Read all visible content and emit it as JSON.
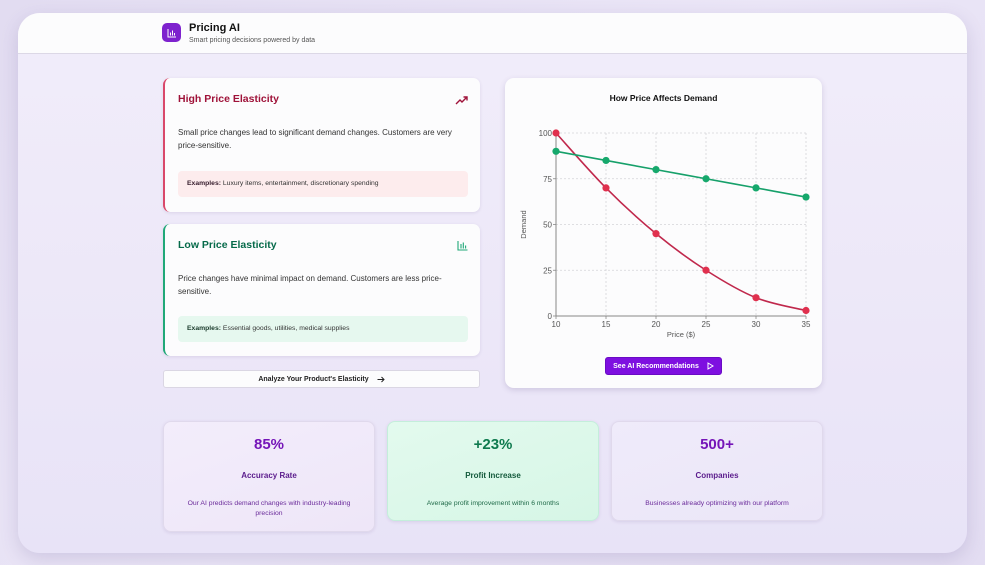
{
  "header": {
    "app_title": "Pricing AI",
    "app_subtitle": "Smart pricing decisions powered by data",
    "logo_icon": "bar-chart-icon"
  },
  "elasticity_cards": [
    {
      "title": "High Price Elasticity",
      "icon": "trending-up-icon",
      "description": "Small price changes lead to significant demand changes. Customers are very price-sensitive.",
      "examples_label": "Examples:",
      "examples": "Luxury items, entertainment, discretionary spending",
      "accent": "#d9486a"
    },
    {
      "title": "Low Price Elasticity",
      "icon": "bar-chart-icon",
      "description": "Price changes have minimal impact on demand. Customers are less price-sensitive.",
      "examples_label": "Examples:",
      "examples": "Essential goods, utilities, medical supplies",
      "accent": "#20a878"
    }
  ],
  "analyze_button": {
    "label": "Analyze Your Product's Elasticity",
    "icon": "arrow-right-icon"
  },
  "chart_card": {
    "title": "How Price Affects Demand",
    "button_label": "See AI Recommendations",
    "button_icon": "play-icon"
  },
  "chart_data": {
    "type": "line",
    "title": "How Price Affects Demand",
    "xlabel": "Price ($)",
    "ylabel": "Demand",
    "x": [
      10,
      15,
      20,
      25,
      30,
      35
    ],
    "xlim": [
      10,
      35
    ],
    "ylim": [
      0,
      100
    ],
    "xticks": [
      10,
      15,
      20,
      25,
      30,
      35
    ],
    "yticks": [
      0,
      25,
      50,
      75,
      100
    ],
    "grid": true,
    "legend": "none",
    "series": [
      {
        "name": "High Price Elasticity",
        "color": "#c0284c",
        "marker_color": "#e0304e",
        "values": [
          100,
          70,
          45,
          25,
          10,
          3
        ]
      },
      {
        "name": "Low Price Elasticity",
        "color": "#16a06a",
        "marker_color": "#16a86c",
        "values": [
          90,
          85,
          80,
          75,
          70,
          65
        ]
      }
    ]
  },
  "stats": [
    {
      "value": "85%",
      "label": "Accuracy Rate",
      "note": "Our AI predicts demand changes with industry-leading precision"
    },
    {
      "value": "+23%",
      "label": "Profit Increase",
      "note": "Average profit improvement within 6 months"
    },
    {
      "value": "500+",
      "label": "Companies",
      "note": "Businesses already optimizing with our platform"
    }
  ],
  "colors": {
    "brand": "#7e22ce",
    "button_purple": "#7e0fe0",
    "high_red": "#9f1239",
    "low_green": "#066a4a"
  }
}
